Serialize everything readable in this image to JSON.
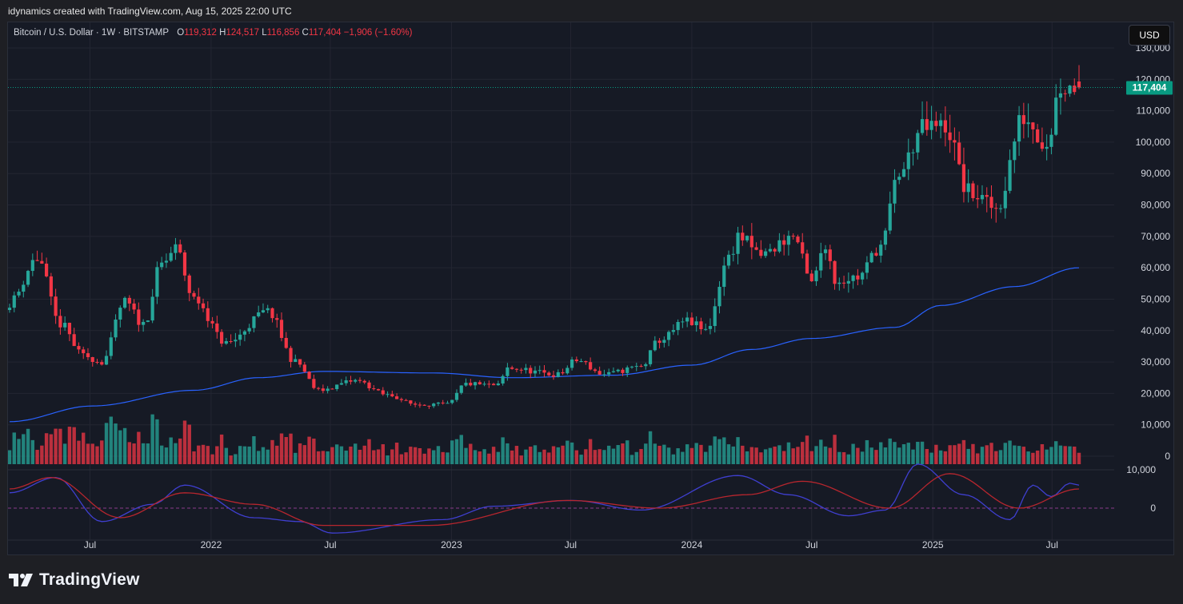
{
  "header": {
    "attribution": "idynamics created with TradingView.com, Aug 15, 2025 22:00 UTC"
  },
  "legend": {
    "symbol": "Bitcoin / U.S. Dollar · 1W · BITSTAMP",
    "open_label": "O",
    "open": "119,312",
    "high_label": "H",
    "high": "124,517",
    "low_label": "L",
    "low": "116,856",
    "close_label": "C",
    "close": "117,404",
    "change": "−1,906 (−1.60%)"
  },
  "currency_button": "USD",
  "last_price_label": "117,404",
  "brand": {
    "name": "TradingView"
  },
  "colors": {
    "up": "#26a69a",
    "down": "#f23645",
    "ma": "#2962ff",
    "osc_fast": "#3f3fd0",
    "osc_slow": "#b7262e",
    "price_tag": "#089981"
  },
  "chart_data": {
    "type": "candlestick",
    "timeframe": "1W",
    "price_axis": {
      "ticks": [
        "0",
        "10,000",
        "20,000",
        "30,000",
        "40,000",
        "50,000",
        "60,000",
        "70,000",
        "80,000",
        "90,000",
        "100,000",
        "110,000",
        "120,000",
        "130,000"
      ],
      "range": [
        0,
        130000
      ]
    },
    "time_axis": {
      "labels": [
        "Jul",
        "2022",
        "Jul",
        "2023",
        "Jul",
        "2024",
        "Jul",
        "2025",
        "Jul"
      ]
    },
    "indicator_axis": {
      "ticks": [
        "10,000",
        "0"
      ]
    },
    "close_anchors": [
      [
        "2021-03-01",
        49000
      ],
      [
        "2021-04-12",
        63000
      ],
      [
        "2021-05-17",
        42000
      ],
      [
        "2021-06-21",
        32000
      ],
      [
        "2021-07-19",
        30000
      ],
      [
        "2021-08-23",
        49000
      ],
      [
        "2021-09-20",
        42000
      ],
      [
        "2021-10-18",
        61000
      ],
      [
        "2021-11-08",
        66000
      ],
      [
        "2021-12-06",
        50000
      ],
      [
        "2022-01-24",
        36000
      ],
      [
        "2022-03-28",
        46000
      ],
      [
        "2022-05-09",
        30000
      ],
      [
        "2022-06-13",
        21000
      ],
      [
        "2022-08-08",
        24000
      ],
      [
        "2022-09-26",
        19500
      ],
      [
        "2022-11-07",
        16500
      ],
      [
        "2022-12-26",
        16500
      ],
      [
        "2023-01-23",
        23000
      ],
      [
        "2023-03-13",
        22500
      ],
      [
        "2023-03-27",
        28000
      ],
      [
        "2023-06-12",
        26000
      ],
      [
        "2023-07-10",
        30500
      ],
      [
        "2023-08-21",
        26000
      ],
      [
        "2023-10-16",
        28500
      ],
      [
        "2023-11-13",
        37000
      ],
      [
        "2023-12-25",
        43000
      ],
      [
        "2024-01-22",
        40000
      ],
      [
        "2024-02-26",
        63000
      ],
      [
        "2024-03-11",
        70000
      ],
      [
        "2024-04-15",
        64000
      ],
      [
        "2024-06-03",
        70000
      ],
      [
        "2024-07-01",
        55000
      ],
      [
        "2024-07-22",
        68000
      ],
      [
        "2024-08-05",
        56000
      ],
      [
        "2024-09-09",
        57000
      ],
      [
        "2024-10-14",
        67000
      ],
      [
        "2024-11-11",
        90000
      ],
      [
        "2024-12-16",
        104000
      ],
      [
        "2025-01-20",
        105000
      ],
      [
        "2025-02-24",
        84000
      ],
      [
        "2025-04-07",
        79000
      ],
      [
        "2025-05-19",
        108000
      ],
      [
        "2025-06-23",
        100000
      ],
      [
        "2025-07-14",
        118000
      ],
      [
        "2025-08-11",
        117404
      ]
    ],
    "moving_average": {
      "anchors": [
        [
          "2021-03-01",
          11000
        ],
        [
          "2021-07-05",
          16000
        ],
        [
          "2021-12-06",
          21000
        ],
        [
          "2022-03-14",
          25000
        ],
        [
          "2022-06-20",
          27000
        ],
        [
          "2022-12-05",
          26500
        ],
        [
          "2023-04-03",
          25000
        ],
        [
          "2023-09-04",
          25800
        ],
        [
          "2024-01-01",
          29000
        ],
        [
          "2024-04-01",
          34000
        ],
        [
          "2024-07-01",
          37500
        ],
        [
          "2024-11-04",
          41000
        ],
        [
          "2025-01-13",
          48000
        ],
        [
          "2025-05-05",
          54000
        ],
        [
          "2025-08-11",
          60000
        ]
      ]
    },
    "oscillator": {
      "fast": [
        [
          "2021-03-01",
          4000
        ],
        [
          "2021-05-10",
          8000
        ],
        [
          "2021-07-19",
          -3500
        ],
        [
          "2021-10-04",
          1000
        ],
        [
          "2021-11-22",
          6000
        ],
        [
          "2022-03-07",
          -2500
        ],
        [
          "2022-05-16",
          -3500
        ],
        [
          "2022-07-04",
          -6500
        ],
        [
          "2022-12-19",
          -3000
        ],
        [
          "2023-03-06",
          500
        ],
        [
          "2023-07-03",
          2000
        ],
        [
          "2023-10-16",
          -500
        ],
        [
          "2024-03-11",
          8500
        ],
        [
          "2024-05-27",
          3500
        ],
        [
          "2024-08-26",
          -2000
        ],
        [
          "2024-10-21",
          -500
        ],
        [
          "2024-12-09",
          11500
        ],
        [
          "2025-02-17",
          3500
        ],
        [
          "2025-04-28",
          -3000
        ],
        [
          "2025-06-02",
          6000
        ],
        [
          "2025-06-30",
          3000
        ],
        [
          "2025-07-28",
          6500
        ],
        [
          "2025-08-11",
          6000
        ]
      ],
      "slow": [
        [
          "2021-03-01",
          5000
        ],
        [
          "2021-05-03",
          8000
        ],
        [
          "2021-08-16",
          -2500
        ],
        [
          "2021-11-22",
          4000
        ],
        [
          "2022-03-07",
          1000
        ],
        [
          "2022-06-20",
          -4500
        ],
        [
          "2022-11-28",
          -4500
        ],
        [
          "2023-06-26",
          2000
        ],
        [
          "2023-11-13",
          0
        ],
        [
          "2024-03-25",
          3500
        ],
        [
          "2024-06-17",
          7000
        ],
        [
          "2024-10-28",
          0
        ],
        [
          "2025-01-27",
          9000
        ],
        [
          "2025-05-12",
          0
        ],
        [
          "2025-08-11",
          5000
        ]
      ]
    }
  }
}
